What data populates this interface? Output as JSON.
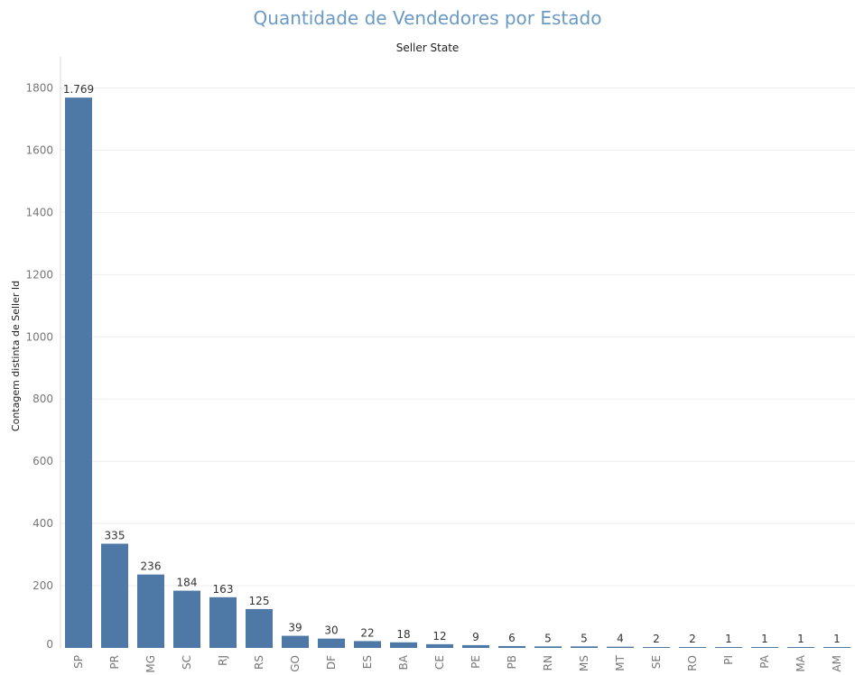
{
  "chart_data": {
    "type": "bar",
    "title": "Quantidade de Vendedores por Estado",
    "xlabel": "Seller State",
    "ylabel": "Contagem distinta de Seller Id",
    "categories": [
      "SP",
      "PR",
      "MG",
      "SC",
      "RJ",
      "RS",
      "GO",
      "DF",
      "ES",
      "BA",
      "CE",
      "PE",
      "PB",
      "RN",
      "MS",
      "MT",
      "SE",
      "RO",
      "PI",
      "PA",
      "MA",
      "AM"
    ],
    "values": [
      1769,
      335,
      236,
      184,
      163,
      125,
      39,
      30,
      22,
      18,
      12,
      9,
      6,
      5,
      5,
      4,
      2,
      2,
      1,
      1,
      1,
      1
    ],
    "value_labels": [
      "1.769",
      "335",
      "236",
      "184",
      "163",
      "125",
      "39",
      "30",
      "22",
      "18",
      "12",
      "9",
      "6",
      "5",
      "5",
      "4",
      "2",
      "2",
      "1",
      "1",
      "1",
      "1"
    ],
    "yticks": [
      0,
      200,
      400,
      600,
      800,
      1000,
      1200,
      1400,
      1600,
      1800
    ],
    "ylim": [
      0,
      1900
    ],
    "grid": true,
    "bar_color": "#4e79a7",
    "title_color": "#6a9ac4"
  }
}
